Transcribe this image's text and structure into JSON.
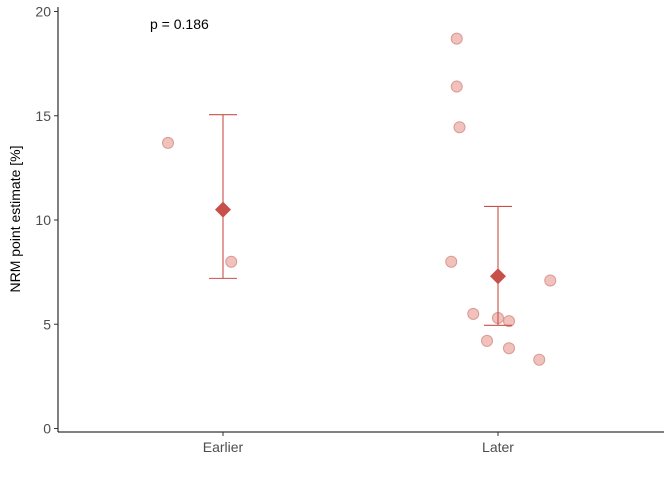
{
  "chart_data": {
    "type": "scatter",
    "ylabel": "NRM point estimate [%]",
    "ylim": [
      0,
      20
    ],
    "yticks": [
      0,
      5,
      10,
      15,
      20
    ],
    "categories": [
      "Earlier",
      "Later"
    ],
    "annotation": "p = 0.186",
    "grid": false,
    "points": [
      {
        "group": "Earlier",
        "x_offset": -0.2,
        "y": 13.7
      },
      {
        "group": "Earlier",
        "x_offset": 0.03,
        "y": 8.0
      },
      {
        "group": "Later",
        "x_offset": -0.15,
        "y": 18.7
      },
      {
        "group": "Later",
        "x_offset": -0.15,
        "y": 16.4
      },
      {
        "group": "Later",
        "x_offset": -0.14,
        "y": 14.45
      },
      {
        "group": "Later",
        "x_offset": -0.17,
        "y": 8.0
      },
      {
        "group": "Later",
        "x_offset": -0.09,
        "y": 5.5
      },
      {
        "group": "Later",
        "x_offset": -0.04,
        "y": 4.2
      },
      {
        "group": "Later",
        "x_offset": 0.0,
        "y": 5.3
      },
      {
        "group": "Later",
        "x_offset": 0.04,
        "y": 5.15
      },
      {
        "group": "Later",
        "x_offset": 0.04,
        "y": 3.85
      },
      {
        "group": "Later",
        "x_offset": 0.15,
        "y": 3.3
      },
      {
        "group": "Later",
        "x_offset": 0.19,
        "y": 7.1
      }
    ],
    "summary": [
      {
        "group": "Earlier",
        "mean": 10.5,
        "lower": 7.2,
        "upper": 15.05
      },
      {
        "group": "Later",
        "mean": 7.3,
        "lower": 4.95,
        "upper": 10.65
      }
    ],
    "colors": {
      "point_fill": "#efb6b0",
      "point_stroke": "#d99a94",
      "summary": "#c8504a",
      "axis": "#000000"
    }
  }
}
